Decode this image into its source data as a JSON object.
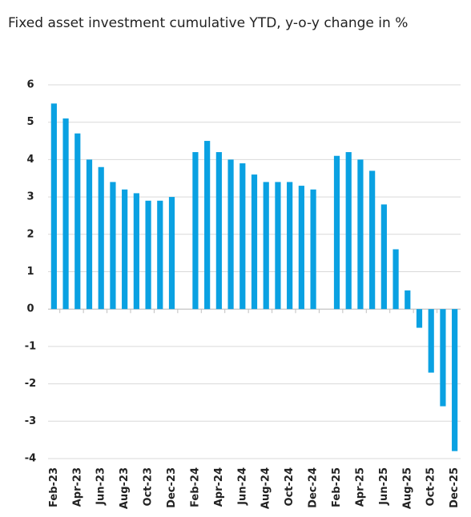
{
  "chart_data": {
    "type": "bar",
    "title": "Fixed asset investment cumulative YTD, y-o-y change in %",
    "categories": [
      "Feb-23",
      null,
      "Apr-23",
      null,
      "Jun-23",
      null,
      "Aug-23",
      null,
      "Oct-23",
      null,
      "Dec-23",
      null,
      "Feb-24",
      null,
      "Apr-24",
      null,
      "Jun-24",
      null,
      "Aug-24",
      null,
      "Oct-24",
      null,
      "Dec-24",
      null,
      "Feb-25",
      null,
      "Apr-25",
      null,
      "Jun-25",
      null,
      "Aug-25",
      null,
      "Oct-25",
      null,
      "Dec-25"
    ],
    "values": [
      5.5,
      5.1,
      4.7,
      4.0,
      3.8,
      3.4,
      3.2,
      3.1,
      2.9,
      2.9,
      3.0,
      null,
      4.2,
      4.5,
      4.2,
      4.0,
      3.9,
      3.6,
      3.4,
      3.4,
      3.4,
      3.3,
      3.2,
      null,
      4.1,
      4.2,
      4.0,
      3.7,
      2.8,
      1.6,
      0.5,
      -0.5,
      -1.7,
      -2.6,
      -3.8
    ],
    "color": "#0aa1e2",
    "ylim": [
      -4,
      6
    ],
    "yticks": [
      -4,
      -3,
      -2,
      -1,
      0,
      1,
      2,
      3,
      4,
      5,
      6
    ],
    "grid": true
  }
}
